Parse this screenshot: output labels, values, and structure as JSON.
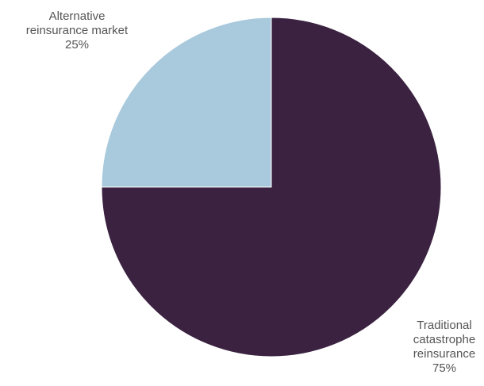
{
  "chart_data": {
    "type": "pie",
    "title": "",
    "slices": [
      {
        "label_lines": [
          "Traditional",
          "catastrophe",
          "reinsurance"
        ],
        "value": 75,
        "value_label": "75%",
        "color": "#3a2240"
      },
      {
        "label_lines": [
          "Alternative",
          "reinsurance market"
        ],
        "value": 25,
        "value_label": "25%",
        "color": "#a9c9dc"
      }
    ],
    "start_angle": "12 o'clock",
    "direction": "clockwise",
    "legend": "none"
  }
}
